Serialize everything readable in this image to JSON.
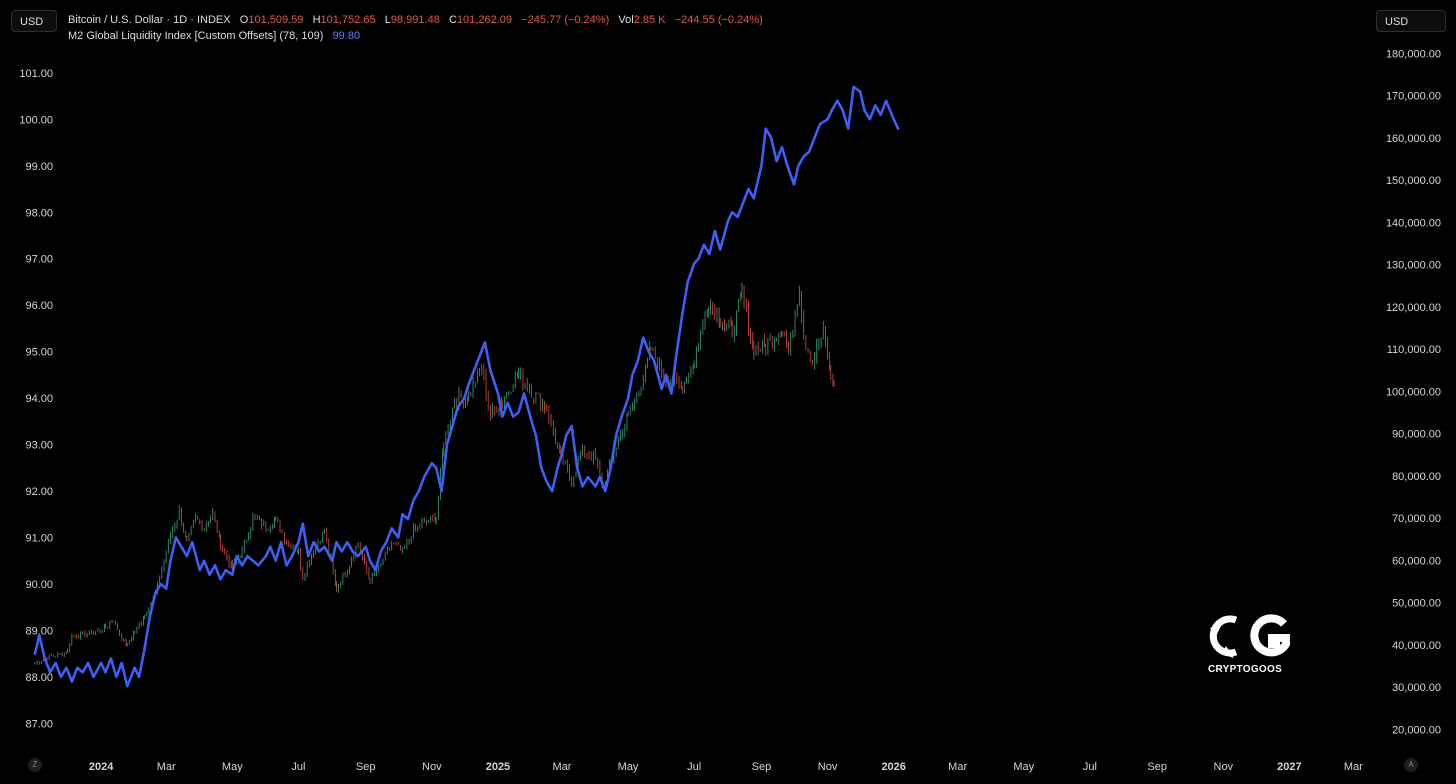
{
  "currency_left": "USD",
  "currency_right": "USD",
  "legend_btc": {
    "name": "Bitcoin / U.S. Dollar · 1D · INDEX",
    "o_label": "O",
    "o_value": "101,509.59",
    "h_label": "H",
    "h_value": "101,752.65",
    "l_label": "L",
    "l_value": "98,991.48",
    "c_label": "C",
    "c_value": "101,262.09",
    "change": "−245.77 (−0.24%)",
    "vol_label": "Vol",
    "vol_value": "2.85 K",
    "vol_change": "−244.55 (−0.24%)"
  },
  "legend_m2": {
    "name": "M2 Global Liquidity Index [Custom Offsets] (78, 109)",
    "value": "99.80"
  },
  "bottom_left_icon": "Z",
  "bottom_right_icon": "A",
  "watermark": {
    "icon": "cryptogoos-logo-icon",
    "text": "CRYPTOGOOS"
  },
  "colors": {
    "m2_line": "#3d5ff5",
    "candle_up": "#3ca37a",
    "candle_down": "#d8504a",
    "background": "#000000"
  },
  "chart_data": {
    "type": "line",
    "x_start": "2023-11",
    "x_end": "2027-04",
    "x_ticks": [
      "2024",
      "Mar",
      "May",
      "Jul",
      "Sep",
      "Nov",
      "2025",
      "Mar",
      "May",
      "Jul",
      "Sep",
      "Nov",
      "2026",
      "Mar",
      "May",
      "Jul",
      "Sep",
      "Nov",
      "2027",
      "Mar"
    ],
    "x_tick_dates": [
      "2024-01-01",
      "2024-03-01",
      "2024-05-01",
      "2024-07-01",
      "2024-09-01",
      "2024-11-01",
      "2025-01-01",
      "2025-03-01",
      "2025-05-01",
      "2025-07-01",
      "2025-09-01",
      "2025-11-01",
      "2026-01-01",
      "2026-03-01",
      "2026-05-01",
      "2026-07-01",
      "2026-09-01",
      "2026-11-01",
      "2027-01-01",
      "2027-03-01"
    ],
    "left_axis": {
      "ticks": [
        "101.00",
        "100.00",
        "99.00",
        "98.00",
        "97.00",
        "96.00",
        "95.00",
        "94.00",
        "93.00",
        "92.00",
        "91.00",
        "90.00",
        "89.00",
        "88.00",
        "87.00"
      ],
      "range": [
        86.6,
        101.6
      ]
    },
    "right_axis": {
      "ticks": [
        "180,000.00",
        "170,000.00",
        "160,000.00",
        "150,000.00",
        "140,000.00",
        "130,000.00",
        "120,000.00",
        "110,000.00",
        "100,000.00",
        "90,000.00",
        "80,000.00",
        "70,000.00",
        "60,000.00",
        "50,000.00",
        "40,000.00",
        "30,000.00",
        "20,000.00"
      ],
      "range": [
        17000,
        182000
      ]
    },
    "series": [
      {
        "name": "M2 Global Liquidity Index [Custom Offsets] (78, 109)",
        "axis": "left",
        "points": [
          [
            "2023-11-01",
            88.5
          ],
          [
            "2023-11-05",
            88.9
          ],
          [
            "2023-11-10",
            88.4
          ],
          [
            "2023-11-15",
            88.1
          ],
          [
            "2023-11-20",
            88.3
          ],
          [
            "2023-11-25",
            88.0
          ],
          [
            "2023-11-30",
            88.2
          ],
          [
            "2023-12-05",
            87.9
          ],
          [
            "2023-12-10",
            88.2
          ],
          [
            "2023-12-15",
            88.1
          ],
          [
            "2023-12-20",
            88.3
          ],
          [
            "2023-12-25",
            88.0
          ],
          [
            "2024-01-01",
            88.3
          ],
          [
            "2024-01-05",
            88.1
          ],
          [
            "2024-01-10",
            88.4
          ],
          [
            "2024-01-15",
            88.0
          ],
          [
            "2024-01-20",
            88.3
          ],
          [
            "2024-01-25",
            87.8
          ],
          [
            "2024-02-01",
            88.2
          ],
          [
            "2024-02-05",
            88.0
          ],
          [
            "2024-02-10",
            88.6
          ],
          [
            "2024-02-15",
            89.3
          ],
          [
            "2024-02-20",
            89.8
          ],
          [
            "2024-02-25",
            90.0
          ],
          [
            "2024-03-01",
            89.9
          ],
          [
            "2024-03-05",
            90.5
          ],
          [
            "2024-03-10",
            91.0
          ],
          [
            "2024-03-15",
            90.8
          ],
          [
            "2024-03-20",
            90.6
          ],
          [
            "2024-03-25",
            90.9
          ],
          [
            "2024-04-01",
            90.3
          ],
          [
            "2024-04-05",
            90.5
          ],
          [
            "2024-04-10",
            90.2
          ],
          [
            "2024-04-15",
            90.4
          ],
          [
            "2024-04-20",
            90.1
          ],
          [
            "2024-04-25",
            90.3
          ],
          [
            "2024-05-01",
            90.2
          ],
          [
            "2024-05-05",
            90.6
          ],
          [
            "2024-05-10",
            90.4
          ],
          [
            "2024-05-15",
            90.6
          ],
          [
            "2024-05-20",
            90.5
          ],
          [
            "2024-05-25",
            90.4
          ],
          [
            "2024-06-01",
            90.6
          ],
          [
            "2024-06-05",
            90.8
          ],
          [
            "2024-06-10",
            90.5
          ],
          [
            "2024-06-15",
            90.9
          ],
          [
            "2024-06-20",
            90.4
          ],
          [
            "2024-06-25",
            90.6
          ],
          [
            "2024-07-01",
            90.9
          ],
          [
            "2024-07-05",
            91.3
          ],
          [
            "2024-07-10",
            90.6
          ],
          [
            "2024-07-15",
            90.9
          ],
          [
            "2024-07-20",
            90.7
          ],
          [
            "2024-07-25",
            90.8
          ],
          [
            "2024-08-01",
            90.5
          ],
          [
            "2024-08-05",
            90.9
          ],
          [
            "2024-08-10",
            90.7
          ],
          [
            "2024-08-15",
            90.9
          ],
          [
            "2024-08-20",
            90.7
          ],
          [
            "2024-08-25",
            90.6
          ],
          [
            "2024-09-01",
            90.8
          ],
          [
            "2024-09-05",
            90.5
          ],
          [
            "2024-09-10",
            90.3
          ],
          [
            "2024-09-15",
            90.7
          ],
          [
            "2024-09-20",
            90.9
          ],
          [
            "2024-09-25",
            91.2
          ],
          [
            "2024-10-01",
            91.0
          ],
          [
            "2024-10-05",
            91.5
          ],
          [
            "2024-10-10",
            91.4
          ],
          [
            "2024-10-15",
            91.8
          ],
          [
            "2024-10-20",
            92.0
          ],
          [
            "2024-10-25",
            92.3
          ],
          [
            "2024-11-01",
            92.6
          ],
          [
            "2024-11-05",
            92.5
          ],
          [
            "2024-11-10",
            92.0
          ],
          [
            "2024-11-15",
            93.0
          ],
          [
            "2024-11-20",
            93.4
          ],
          [
            "2024-11-25",
            93.8
          ],
          [
            "2024-12-01",
            94.0
          ],
          [
            "2024-12-05",
            94.3
          ],
          [
            "2024-12-10",
            94.6
          ],
          [
            "2024-12-15",
            94.9
          ],
          [
            "2024-12-20",
            95.2
          ],
          [
            "2024-12-25",
            94.6
          ],
          [
            "2025-01-01",
            94.1
          ],
          [
            "2025-01-05",
            93.6
          ],
          [
            "2025-01-10",
            93.9
          ],
          [
            "2025-01-15",
            93.6
          ],
          [
            "2025-01-20",
            93.7
          ],
          [
            "2025-01-25",
            94.1
          ],
          [
            "2025-02-01",
            93.5
          ],
          [
            "2025-02-05",
            93.2
          ],
          [
            "2025-02-10",
            92.5
          ],
          [
            "2025-02-15",
            92.2
          ],
          [
            "2025-02-20",
            92.0
          ],
          [
            "2025-02-25",
            92.5
          ],
          [
            "2025-03-01",
            92.8
          ],
          [
            "2025-03-05",
            93.2
          ],
          [
            "2025-03-10",
            93.4
          ],
          [
            "2025-03-15",
            92.5
          ],
          [
            "2025-03-20",
            92.1
          ],
          [
            "2025-03-25",
            92.3
          ],
          [
            "2025-04-01",
            92.1
          ],
          [
            "2025-04-05",
            92.3
          ],
          [
            "2025-04-10",
            92.0
          ],
          [
            "2025-04-15",
            92.5
          ],
          [
            "2025-04-20",
            93.2
          ],
          [
            "2025-04-25",
            93.6
          ],
          [
            "2025-05-01",
            94.0
          ],
          [
            "2025-05-05",
            94.5
          ],
          [
            "2025-05-10",
            94.8
          ],
          [
            "2025-05-15",
            95.3
          ],
          [
            "2025-05-20",
            95.0
          ],
          [
            "2025-05-25",
            94.8
          ],
          [
            "2025-06-01",
            94.2
          ],
          [
            "2025-06-05",
            94.5
          ],
          [
            "2025-06-10",
            94.1
          ],
          [
            "2025-06-15",
            95.0
          ],
          [
            "2025-06-20",
            95.8
          ],
          [
            "2025-06-25",
            96.5
          ],
          [
            "2025-07-01",
            96.9
          ],
          [
            "2025-07-05",
            97.0
          ],
          [
            "2025-07-10",
            97.3
          ],
          [
            "2025-07-15",
            97.1
          ],
          [
            "2025-07-20",
            97.6
          ],
          [
            "2025-07-25",
            97.2
          ],
          [
            "2025-08-01",
            97.8
          ],
          [
            "2025-08-05",
            98.0
          ],
          [
            "2025-08-10",
            97.9
          ],
          [
            "2025-08-15",
            98.2
          ],
          [
            "2025-08-20",
            98.5
          ],
          [
            "2025-08-25",
            98.3
          ],
          [
            "2025-09-01",
            99.0
          ],
          [
            "2025-09-05",
            99.8
          ],
          [
            "2025-09-10",
            99.6
          ],
          [
            "2025-09-15",
            99.1
          ],
          [
            "2025-09-20",
            99.4
          ],
          [
            "2025-09-25",
            99.0
          ],
          [
            "2025-10-01",
            98.6
          ],
          [
            "2025-10-05",
            99.0
          ],
          [
            "2025-10-10",
            99.2
          ],
          [
            "2025-10-15",
            99.3
          ],
          [
            "2025-10-20",
            99.6
          ],
          [
            "2025-10-25",
            99.9
          ],
          [
            "2025-11-01",
            100.0
          ],
          [
            "2025-11-05",
            100.2
          ],
          [
            "2025-11-10",
            100.4
          ],
          [
            "2025-11-15",
            100.2
          ],
          [
            "2025-11-20",
            99.8
          ],
          [
            "2025-11-25",
            100.7
          ],
          [
            "2025-12-01",
            100.6
          ],
          [
            "2025-12-05",
            100.2
          ],
          [
            "2025-12-10",
            100.0
          ],
          [
            "2025-12-15",
            100.3
          ],
          [
            "2025-12-20",
            100.1
          ],
          [
            "2025-12-25",
            100.4
          ],
          [
            "2026-01-01",
            100.0
          ],
          [
            "2026-01-05",
            99.8
          ]
        ]
      },
      {
        "name": "Bitcoin / U.S. Dollar · 1D · INDEX",
        "axis": "right",
        "style": "candles",
        "points": [
          [
            "2023-11-01",
            35500
          ],
          [
            "2023-11-10",
            37000
          ],
          [
            "2023-11-20",
            37500
          ],
          [
            "2023-12-01",
            38500
          ],
          [
            "2023-12-05",
            42000
          ],
          [
            "2023-12-15",
            42500
          ],
          [
            "2023-12-25",
            43000
          ],
          [
            "2024-01-05",
            44000
          ],
          [
            "2024-01-12",
            46000
          ],
          [
            "2024-01-20",
            41500
          ],
          [
            "2024-01-25",
            40000
          ],
          [
            "2024-02-01",
            43000
          ],
          [
            "2024-02-10",
            47000
          ],
          [
            "2024-02-20",
            52000
          ],
          [
            "2024-02-28",
            60000
          ],
          [
            "2024-03-05",
            66000
          ],
          [
            "2024-03-13",
            71500
          ],
          [
            "2024-03-20",
            64000
          ],
          [
            "2024-03-28",
            70000
          ],
          [
            "2024-04-05",
            68000
          ],
          [
            "2024-04-13",
            71000
          ],
          [
            "2024-04-20",
            64000
          ],
          [
            "2024-05-01",
            58000
          ],
          [
            "2024-05-10",
            62000
          ],
          [
            "2024-05-20",
            70000
          ],
          [
            "2024-06-01",
            68000
          ],
          [
            "2024-06-10",
            69500
          ],
          [
            "2024-06-20",
            64500
          ],
          [
            "2024-07-01",
            62000
          ],
          [
            "2024-07-05",
            56000
          ],
          [
            "2024-07-15",
            63000
          ],
          [
            "2024-07-25",
            67000
          ],
          [
            "2024-08-05",
            53000
          ],
          [
            "2024-08-15",
            58000
          ],
          [
            "2024-08-25",
            64000
          ],
          [
            "2024-09-05",
            55000
          ],
          [
            "2024-09-15",
            59000
          ],
          [
            "2024-09-25",
            64000
          ],
          [
            "2024-10-05",
            62000
          ],
          [
            "2024-10-15",
            67000
          ],
          [
            "2024-10-25",
            69000
          ],
          [
            "2024-11-05",
            70000
          ],
          [
            "2024-11-12",
            88000
          ],
          [
            "2024-11-22",
            98000
          ],
          [
            "2024-12-05",
            99000
          ],
          [
            "2024-12-17",
            106000
          ],
          [
            "2024-12-25",
            94000
          ],
          [
            "2025-01-05",
            98000
          ],
          [
            "2025-01-20",
            104000
          ],
          [
            "2025-02-01",
            100000
          ],
          [
            "2025-02-15",
            96000
          ],
          [
            "2025-02-28",
            84000
          ],
          [
            "2025-03-10",
            79000
          ],
          [
            "2025-03-20",
            86000
          ],
          [
            "2025-04-01",
            84000
          ],
          [
            "2025-04-08",
            77000
          ],
          [
            "2025-04-20",
            87000
          ],
          [
            "2025-05-01",
            94000
          ],
          [
            "2025-05-15",
            103000
          ],
          [
            "2025-05-22",
            110000
          ],
          [
            "2025-06-05",
            103000
          ],
          [
            "2025-06-20",
            101000
          ],
          [
            "2025-07-01",
            107000
          ],
          [
            "2025-07-14",
            121000
          ],
          [
            "2025-07-25",
            117000
          ],
          [
            "2025-08-05",
            114000
          ],
          [
            "2025-08-14",
            123000
          ],
          [
            "2025-08-25",
            110000
          ],
          [
            "2025-09-05",
            111000
          ],
          [
            "2025-09-20",
            115000
          ],
          [
            "2025-09-26",
            109000
          ],
          [
            "2025-10-06",
            125000
          ],
          [
            "2025-10-10",
            113000
          ],
          [
            "2025-10-18",
            107000
          ],
          [
            "2025-10-28",
            114000
          ],
          [
            "2025-11-04",
            104000
          ],
          [
            "2025-11-07",
            101262
          ]
        ]
      }
    ],
    "grid": false,
    "legend": "top-left"
  }
}
